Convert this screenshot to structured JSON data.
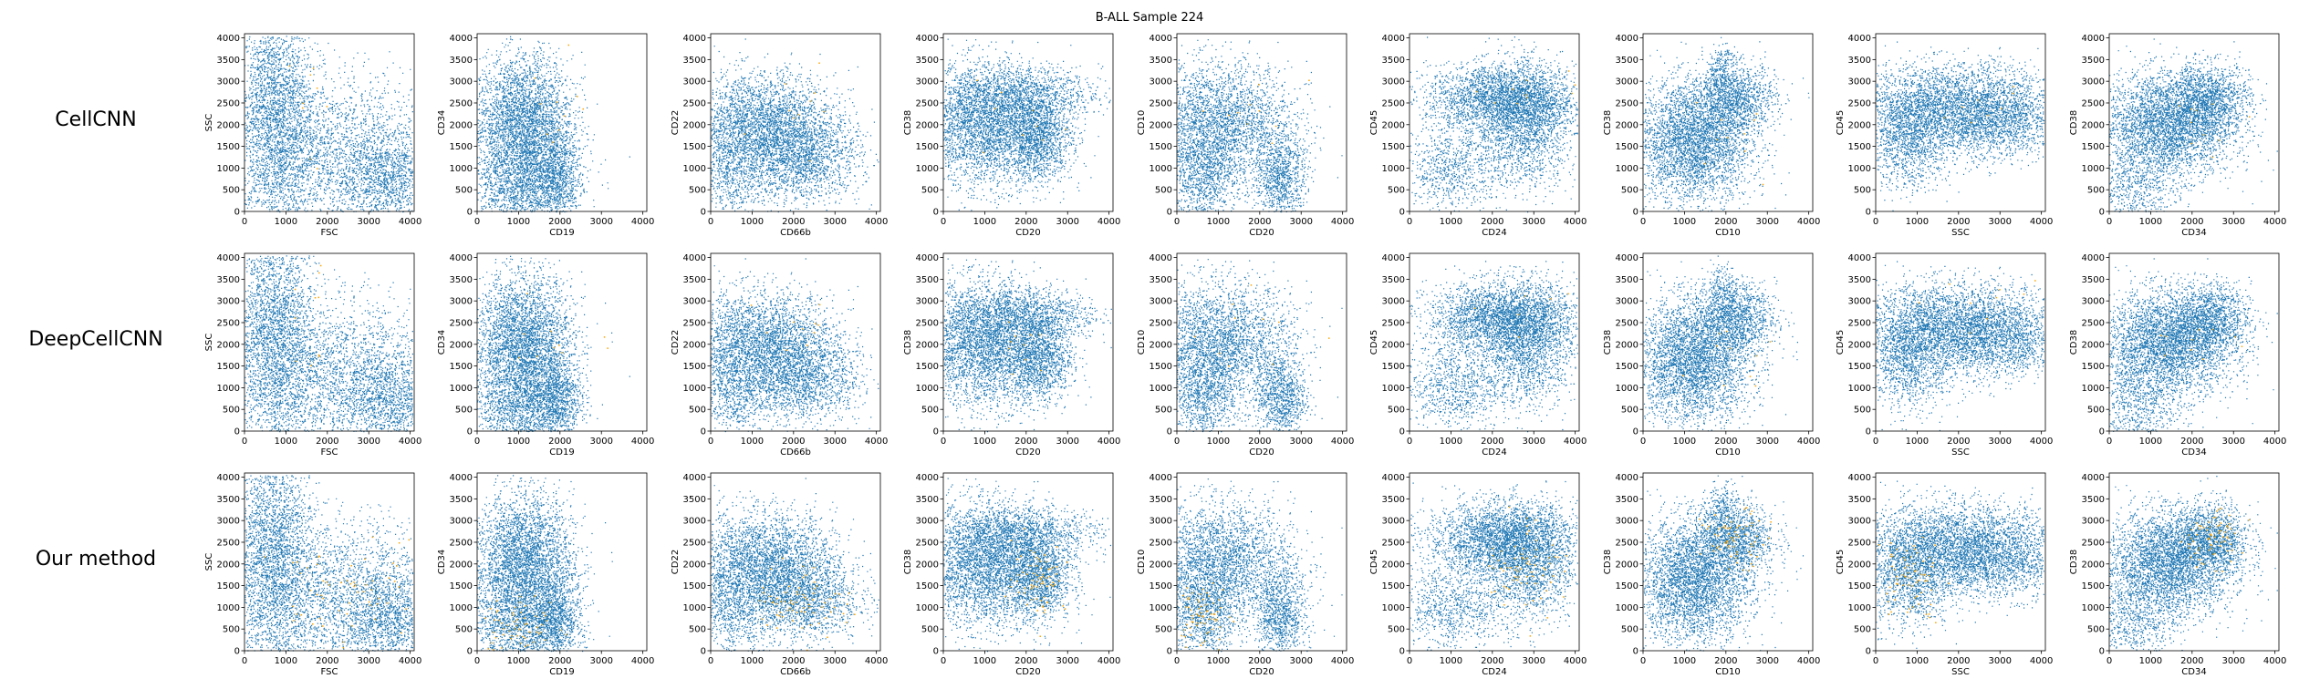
{
  "figure": {
    "title": "B-ALL Sample 224",
    "row_labels": [
      "CellCNN",
      "DeepCellCNN",
      "Our method"
    ]
  },
  "colors": {
    "points": "#1f77b4",
    "highlight": "#ffa500",
    "axes": "#000000"
  },
  "chart_data": {
    "type": "scatter",
    "title": "B-ALL Sample 224",
    "xlim": [
      0,
      4096
    ],
    "ylim": [
      0,
      4096
    ],
    "ticks": [
      0,
      500,
      1000,
      1500,
      2000,
      2500,
      3000,
      3500,
      4000
    ],
    "xticks": [
      0,
      1000,
      2000,
      3000,
      4000
    ],
    "yticks": [
      0,
      500,
      1000,
      1500,
      2000,
      2500,
      3000,
      3500,
      4000
    ],
    "grid": false,
    "rows": [
      "CellCNN",
      "DeepCellCNN",
      "Our method"
    ],
    "panels": [
      {
        "xlabel": "FSC",
        "ylabel": "SSC"
      },
      {
        "xlabel": "CD19",
        "ylabel": "CD34"
      },
      {
        "xlabel": "CD66b",
        "ylabel": "CD22"
      },
      {
        "xlabel": "CD20",
        "ylabel": "CD38"
      },
      {
        "xlabel": "CD20",
        "ylabel": "CD10"
      },
      {
        "xlabel": "CD24",
        "ylabel": "CD45"
      },
      {
        "xlabel": "CD10",
        "ylabel": "CD38"
      },
      {
        "xlabel": "SSC",
        "ylabel": "CD45"
      },
      {
        "xlabel": "CD34",
        "ylabel": "CD38"
      }
    ],
    "series": [
      {
        "name": "",
        "color": "#1f77b4"
      },
      {
        "name": "",
        "color": "#ffa500"
      }
    ]
  }
}
